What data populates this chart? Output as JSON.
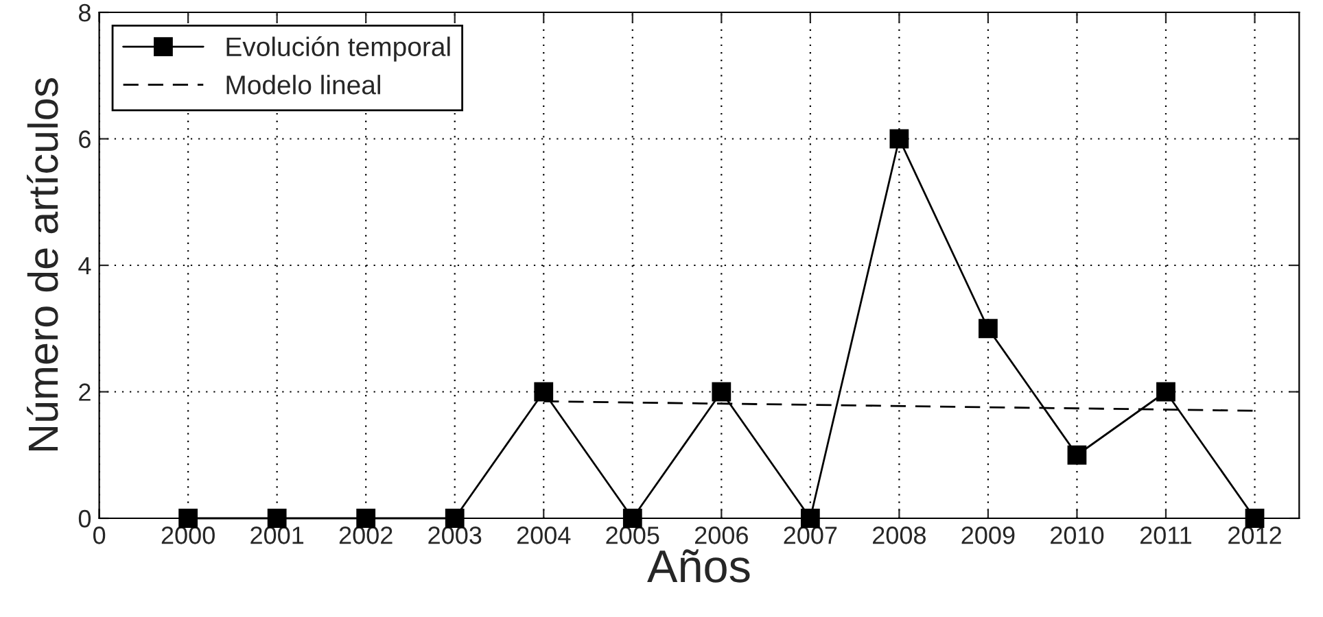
{
  "chart_data": {
    "type": "line",
    "xlabel": "Años",
    "ylabel": "Número de artículos",
    "categories": [
      "0",
      "2000",
      "2001",
      "2002",
      "2003",
      "2004",
      "2005",
      "2006",
      "2007",
      "2008",
      "2009",
      "2010",
      "2011",
      "2012"
    ],
    "series": [
      {
        "name": "Evolución temporal",
        "color": "#000000",
        "marker": "square",
        "line_style": "solid",
        "values": [
          null,
          0,
          0,
          0,
          0,
          2,
          0,
          2,
          0,
          6,
          3,
          1,
          2,
          0
        ]
      },
      {
        "name": "Modelo lineal",
        "color": "#000000",
        "marker": "none",
        "line_style": "dashed",
        "values": [
          null,
          null,
          null,
          null,
          null,
          1.85,
          null,
          null,
          null,
          null,
          null,
          null,
          null,
          1.7
        ]
      }
    ],
    "ylim": [
      0,
      8
    ],
    "yticks": [
      0,
      2,
      4,
      6,
      8
    ],
    "grid": true,
    "legend": "top left"
  }
}
